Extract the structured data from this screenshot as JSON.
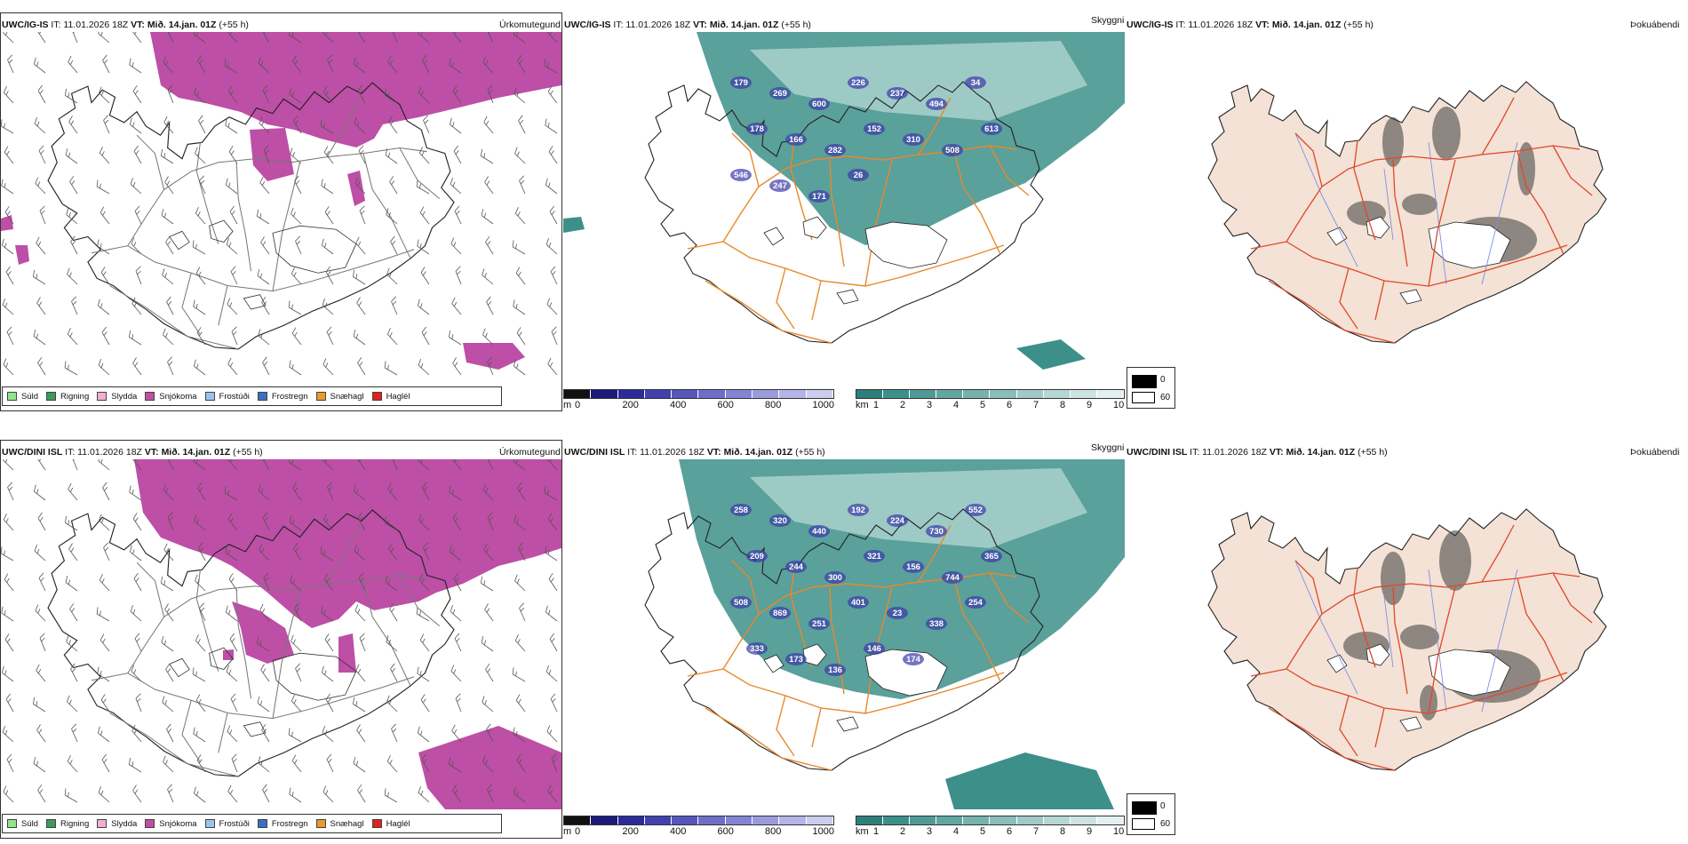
{
  "colors": {
    "snow": "#bd4fa6",
    "cloud_dark": "#3d8f8a",
    "cloud_light": "#d7ecea",
    "road": "#e8892a",
    "red_road": "#e0472a",
    "land_tint": "#f3e2d5",
    "river": "#7d8ee8"
  },
  "rows": [
    {
      "model": "UWC/IG-IS",
      "run": "IT: 11.01.2026 18Z",
      "valid_label": "VT:",
      "valid_time": "Mið. 14.jan. 01Z",
      "lead": "(+55 h)",
      "panels": [
        "Úrkomutegund",
        "Skyggni",
        "Þokuábendi"
      ],
      "peaks": [
        "179",
        "269",
        "600",
        "226",
        "237",
        "494",
        "34",
        "178",
        "166",
        "282",
        "152",
        "310",
        "508",
        "613",
        "546",
        "247",
        "171",
        "26"
      ]
    },
    {
      "model": "UWC/DINI ISL",
      "run": "IT: 11.01.2026 18Z",
      "valid_label": "VT:",
      "valid_time": "Mið. 14.jan. 01Z",
      "lead": "(+55 h)",
      "panels": [
        "Úrkomutegund",
        "Skyggni",
        "Þokuábendi"
      ],
      "peaks": [
        "258",
        "320",
        "440",
        "192",
        "224",
        "730",
        "552",
        "209",
        "244",
        "300",
        "321",
        "156",
        "744",
        "365",
        "508",
        "869",
        "251",
        "401",
        "23",
        "338",
        "254",
        "333",
        "173",
        "136",
        "146",
        "174"
      ]
    }
  ],
  "precip_legend": [
    {
      "label": "Súld",
      "color": "#8fe58a"
    },
    {
      "label": "Rigning",
      "color": "#3f9a5a"
    },
    {
      "label": "Slydda",
      "color": "#f3aed2"
    },
    {
      "label": "Snjókoma",
      "color": "#bd4fa6"
    },
    {
      "label": "Frostúði",
      "color": "#9cc3ee"
    },
    {
      "label": "Frostregn",
      "color": "#3a70c0"
    },
    {
      "label": "Snæhagl",
      "color": "#e89a2a"
    },
    {
      "label": "Haglél",
      "color": "#e0201e"
    }
  ],
  "ceiling_bar": {
    "unit": "m",
    "ticks": [
      "0",
      "200",
      "400",
      "600",
      "800",
      "1000"
    ],
    "colors": [
      "#111111",
      "#1a1a7a",
      "#2b2b9a",
      "#4141b0",
      "#5656bb",
      "#6e6ec8",
      "#8484d2",
      "#9b9bdc",
      "#b4b4e6",
      "#cccced"
    ]
  },
  "visibility_bar": {
    "unit": "km",
    "ticks": [
      "1",
      "2",
      "3",
      "4",
      "5",
      "6",
      "7",
      "8",
      "9",
      "10"
    ],
    "colors": [
      "#2e7f7a",
      "#3d8f8a",
      "#4f9a96",
      "#62a6a2",
      "#76b2ae",
      "#8bbeba",
      "#a0cac7",
      "#b6d7d4",
      "#cce3e1",
      "#e3f0ef"
    ]
  },
  "fog_legend": {
    "high": "0",
    "low": "60"
  }
}
